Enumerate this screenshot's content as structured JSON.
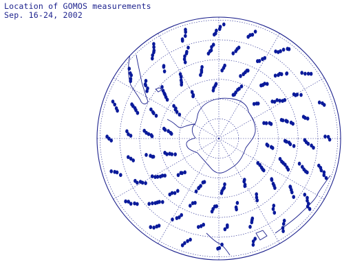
{
  "title": {
    "line1": "Location of GOMOS measurements",
    "line2": "Sep. 16-24, 2002"
  },
  "map": {
    "projection": "south-polar stereographic",
    "line_color": "#1a1f8c",
    "point_color": "#0a1a9a",
    "latitude_circles": 6,
    "meridians": 12,
    "point_rings": 4
  }
}
